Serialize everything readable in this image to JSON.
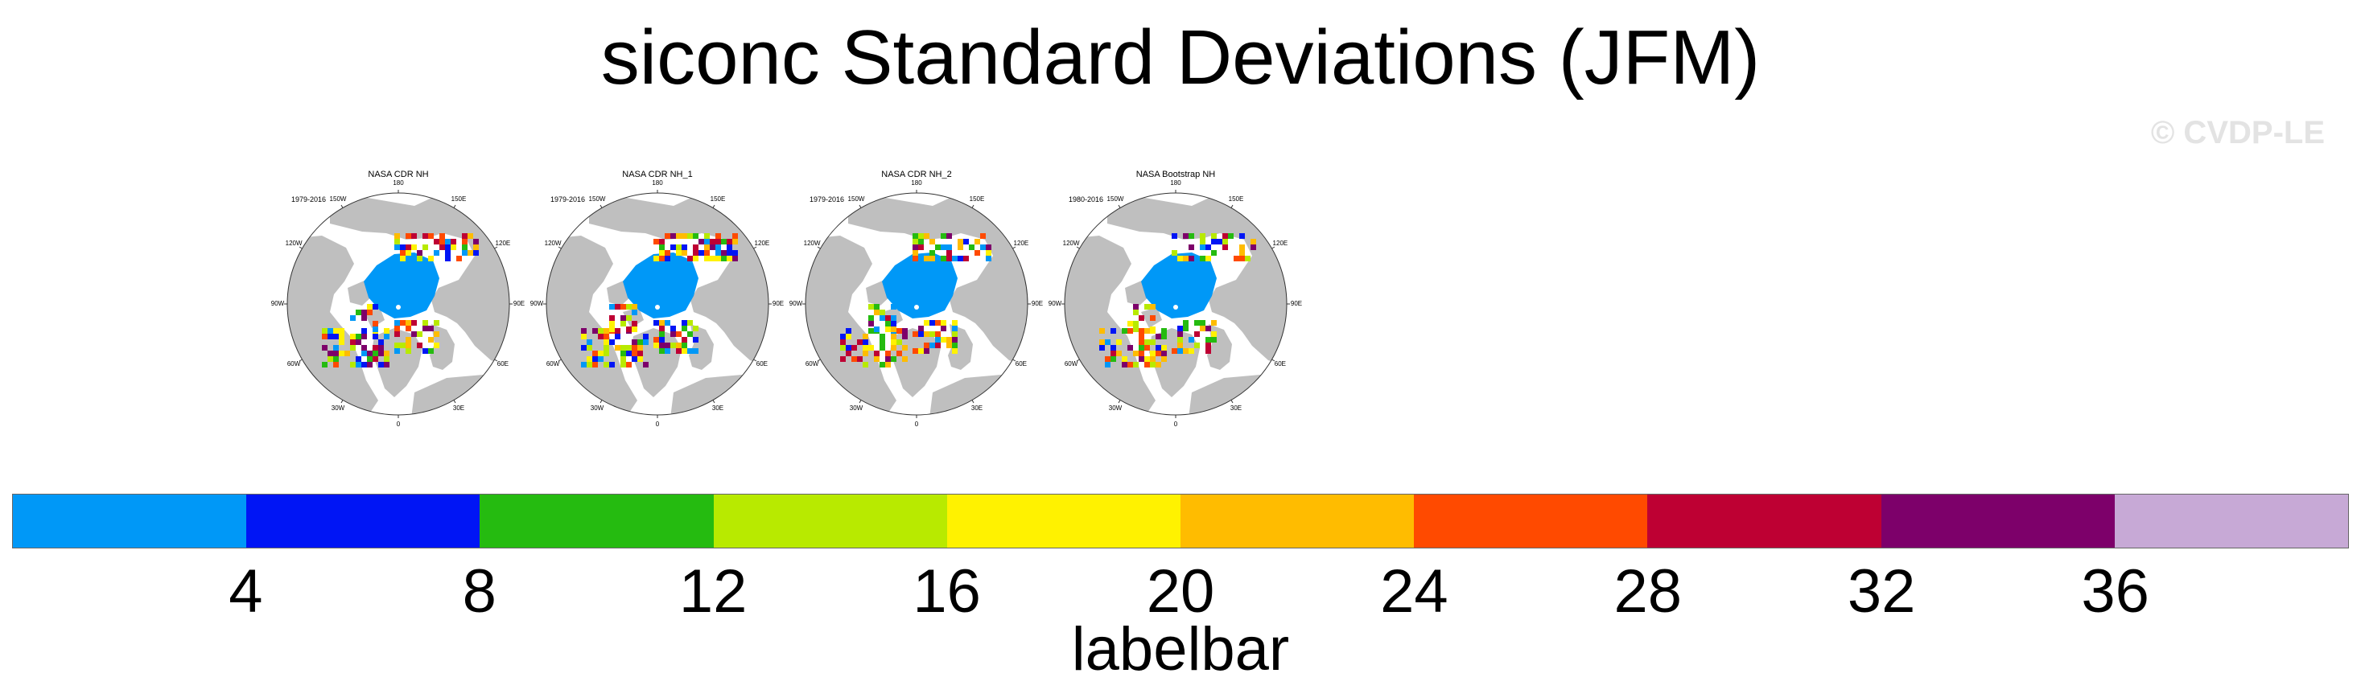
{
  "figure": {
    "title": "siconc Standard Deviations (JFM)",
    "watermark": "© CVDP-LE"
  },
  "panels": [
    {
      "title": "NASA CDR NH",
      "years": "1979-2016"
    },
    {
      "title": "NASA CDR NH_1",
      "years": "1979-2016"
    },
    {
      "title": "NASA CDR NH_2",
      "years": "1979-2016"
    },
    {
      "title": "NASA Bootstrap NH",
      "years": "1980-2016"
    }
  ],
  "map_labels": {
    "top": "180",
    "top_left": "150W",
    "top_right": "150E",
    "upper_left": "120W",
    "upper_right": "120E",
    "left": "90W",
    "right": "90E",
    "lower_left": "60W",
    "lower_right": "60E",
    "bottom_left": "30W",
    "bottom_right": "30E",
    "bottom": "0"
  },
  "labelbar": {
    "title": "labelbar",
    "ticks": [
      "4",
      "8",
      "12",
      "16",
      "20",
      "24",
      "28",
      "32",
      "36"
    ],
    "colors": [
      "#0098f7",
      "#0015f5",
      "#25bb10",
      "#b8ea00",
      "#fff200",
      "#ffbc00",
      "#ff4a00",
      "#be0033",
      "#7d006a",
      "#c7a9d6"
    ]
  },
  "map_colors": {
    "ocean": "#ffffff",
    "land": "#bfbfbf",
    "ice_core": "#0098f7"
  }
}
